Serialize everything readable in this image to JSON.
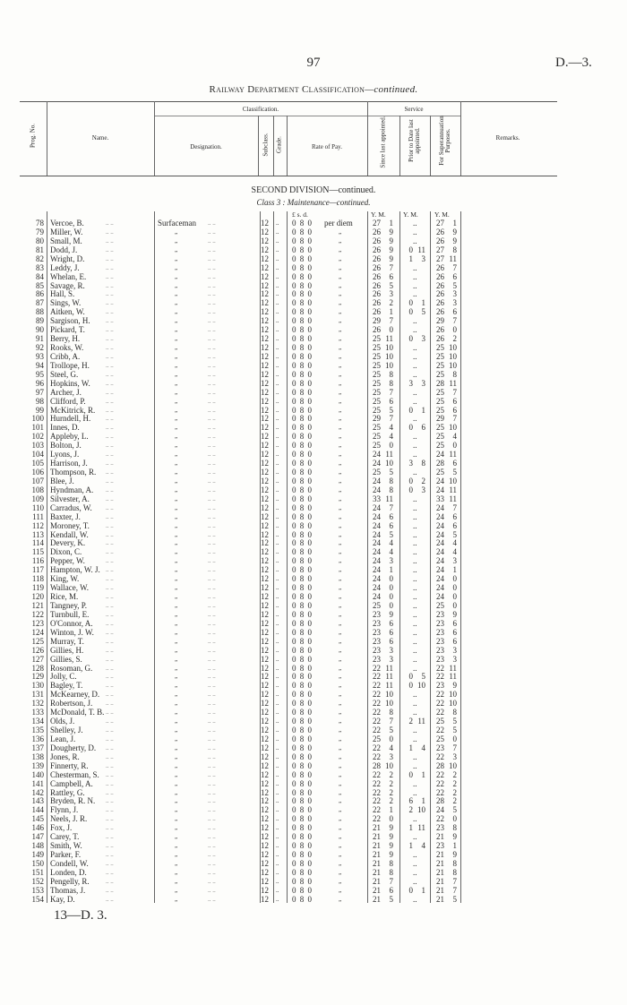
{
  "page": {
    "number": "97",
    "reference": "D.—3.",
    "footer": "13—D. 3."
  },
  "title": {
    "main": "Railway Department Classification",
    "suffix": "—continued."
  },
  "headers": {
    "prog_no": "Prog. No.",
    "name": "Name.",
    "classification": "Classification.",
    "designation": "Designation.",
    "subclass": "Subclass.",
    "grade": "Grade.",
    "rate_of_pay": "Rate of Pay.",
    "service": "Service",
    "since_last": "Since last appointed.",
    "prior_to_date": "Prior to Date last appointed.",
    "for_super": "For Superannuation Purposes.",
    "remarks": "Remarks."
  },
  "section": {
    "division": "SECOND DIVISION—continued.",
    "class_label": "Class 3 : Maintenance—continued."
  },
  "units": {
    "pay": "£  s.  d.",
    "ym": "Y.  M."
  },
  "common": {
    "designation": "Surfaceman",
    "ditto": "„",
    "subclass": "12",
    "grade": "..",
    "rate": "0  8  0",
    "rate_unit": "per diem",
    "blank": ".."
  },
  "rows": [
    [
      "78",
      "Vercoe, B.",
      "27 1",
      "..",
      "27 1"
    ],
    [
      "79",
      "Miller, W.",
      "26 9",
      "..",
      "26 9"
    ],
    [
      "80",
      "Small, M.",
      "26 9",
      "..",
      "26 9"
    ],
    [
      "81",
      "Dodd, J.",
      "26 9",
      "0 11",
      "27 8"
    ],
    [
      "82",
      "Wright, D.",
      "26 9",
      "1 3",
      "27 11"
    ],
    [
      "83",
      "Leddy, J.",
      "26 7",
      "..",
      "26 7"
    ],
    [
      "84",
      "Whelan, E.",
      "26 6",
      "..",
      "26 6"
    ],
    [
      "85",
      "Savage, R.",
      "26 5",
      "..",
      "26 5"
    ],
    [
      "86",
      "Hall, S.",
      "26 3",
      "..",
      "26 3"
    ],
    [
      "87",
      "Sings, W.",
      "26 2",
      "0 1",
      "26 3"
    ],
    [
      "88",
      "Aitken, W.",
      "26 1",
      "0 5",
      "26 6"
    ],
    [
      "89",
      "Sargison, H.",
      "29 7",
      "..",
      "29 7"
    ],
    [
      "90",
      "Pickard, T.",
      "26 0",
      "..",
      "26 0"
    ],
    [
      "91",
      "Berry, H.",
      "25 11",
      "0 3",
      "26 2"
    ],
    [
      "92",
      "Rooks, W.",
      "25 10",
      "..",
      "25 10"
    ],
    [
      "93",
      "Cribb, A.",
      "25 10",
      "..",
      "25 10"
    ],
    [
      "94",
      "Trollope, H.",
      "25 10",
      "..",
      "25 10"
    ],
    [
      "95",
      "Steel, G.",
      "25 8",
      "..",
      "25 8"
    ],
    [
      "96",
      "Hopkins, W.",
      "25 8",
      "3 3",
      "28 11"
    ],
    [
      "97",
      "Archer, J.",
      "25 7",
      "..",
      "25 7"
    ],
    [
      "98",
      "Clifford, P.",
      "25 6",
      "..",
      "25 6"
    ],
    [
      "99",
      "McKitrick, R.",
      "25 5",
      "0 1",
      "25 6"
    ],
    [
      "100",
      "Hurndell, H.",
      "29 7",
      "..",
      "29 7"
    ],
    [
      "101",
      "Innes, D.",
      "25 4",
      "0 6",
      "25 10"
    ],
    [
      "102",
      "Appleby, L.",
      "25 4",
      "..",
      "25 4"
    ],
    [
      "103",
      "Bolton, J.",
      "25 0",
      "..",
      "25 0"
    ],
    [
      "104",
      "Lyons, J.",
      "24 11",
      "..",
      "24 11"
    ],
    [
      "105",
      "Harrison, J.",
      "24 10",
      "3 8",
      "28 6"
    ],
    [
      "106",
      "Thompson, R.",
      "25 5",
      "..",
      "25 5"
    ],
    [
      "107",
      "Blee, J.",
      "24 8",
      "0 2",
      "24 10"
    ],
    [
      "108",
      "Hyndman, A.",
      "24 8",
      "0 3",
      "24 11"
    ],
    [
      "109",
      "Silvester, A.",
      "33 11",
      "..",
      "33 11"
    ],
    [
      "110",
      "Carradus, W.",
      "24 7",
      "..",
      "24 7"
    ],
    [
      "111",
      "Baxter, J.",
      "24 6",
      "..",
      "24 6"
    ],
    [
      "112",
      "Moroney, T.",
      "24 6",
      "..",
      "24 6"
    ],
    [
      "113",
      "Kendall, W.",
      "24 5",
      "..",
      "24 5"
    ],
    [
      "114",
      "Devery, K.",
      "24 4",
      "..",
      "24 4"
    ],
    [
      "115",
      "Dixon, C.",
      "24 4",
      "..",
      "24 4"
    ],
    [
      "116",
      "Pepper, W.",
      "24 3",
      "..",
      "24 3"
    ],
    [
      "117",
      "Hampton, W. J.",
      "24 1",
      "..",
      "24 1"
    ],
    [
      "118",
      "King, W.",
      "24 0",
      "..",
      "24 0"
    ],
    [
      "119",
      "Wallace, W.",
      "24 0",
      "..",
      "24 0"
    ],
    [
      "120",
      "Rice, M.",
      "24 0",
      "..",
      "24 0"
    ],
    [
      "121",
      "Tangney, P.",
      "25 0",
      "..",
      "25 0"
    ],
    [
      "122",
      "Turnbull, E.",
      "23 9",
      "..",
      "23 9"
    ],
    [
      "123",
      "O'Connor, A.",
      "23 6",
      "..",
      "23 6"
    ],
    [
      "124",
      "Winton, J. W.",
      "23 6",
      "..",
      "23 6"
    ],
    [
      "125",
      "Murray, T.",
      "23 6",
      "..",
      "23 6"
    ],
    [
      "126",
      "Gillies, H.",
      "23 3",
      "..",
      "23 3"
    ],
    [
      "127",
      "Gillies, S.",
      "23 3",
      "..",
      "23 3"
    ],
    [
      "128",
      "Rosoman, G.",
      "22 11",
      "..",
      "22 11"
    ],
    [
      "129",
      "Jolly, C.",
      "22 11",
      "0 5",
      "22 11"
    ],
    [
      "130",
      "Bagley, T.",
      "22 11",
      "0 10",
      "23 9"
    ],
    [
      "131",
      "McKearney, D.",
      "22 10",
      "..",
      "22 10"
    ],
    [
      "132",
      "Robertson, J.",
      "22 10",
      "..",
      "22 10"
    ],
    [
      "133",
      "McDonald, T. B.",
      "22 8",
      "..",
      "22 8"
    ],
    [
      "134",
      "Olds, J.",
      "22 7",
      "2 11",
      "25 5"
    ],
    [
      "135",
      "Shelley, J.",
      "22 5",
      "..",
      "22 5"
    ],
    [
      "136",
      "Lean, J.",
      "25 0",
      "..",
      "25 0"
    ],
    [
      "137",
      "Dougherty, D.",
      "22 4",
      "1 4",
      "23 7"
    ],
    [
      "138",
      "Jones, R.",
      "22 3",
      "..",
      "22 3"
    ],
    [
      "139",
      "Finnerty, R.",
      "28 10",
      "..",
      "28 10"
    ],
    [
      "140",
      "Chesterman, S.",
      "22 2",
      "0 1",
      "22 2"
    ],
    [
      "141",
      "Campbell, A.",
      "22 2",
      "..",
      "22 2"
    ],
    [
      "142",
      "Rattley, G.",
      "22 2",
      "..",
      "22 2"
    ],
    [
      "143",
      "Bryden, R. N.",
      "22 2",
      "6 1",
      "28 2"
    ],
    [
      "144",
      "Flynn, J.",
      "22 1",
      "2 10",
      "24 5"
    ],
    [
      "145",
      "Neels, J. R.",
      "22 0",
      "..",
      "22 0"
    ],
    [
      "146",
      "Fox, J.",
      "21 9",
      "1 11",
      "23 8"
    ],
    [
      "147",
      "Carey, T.",
      "21 9",
      "..",
      "21 9"
    ],
    [
      "148",
      "Smith, W.",
      "21 9",
      "1 4",
      "23 1"
    ],
    [
      "149",
      "Parker, F.",
      "21 9",
      "..",
      "21 9"
    ],
    [
      "150",
      "Condell, W.",
      "21 8",
      "..",
      "21 8"
    ],
    [
      "151",
      "Londen, D.",
      "21 8",
      "..",
      "21 8"
    ],
    [
      "152",
      "Pengelly, R.",
      "21 7",
      "..",
      "21 7"
    ],
    [
      "153",
      "Thomas, J.",
      "21 6",
      "0 1",
      "21 7"
    ],
    [
      "154",
      "Kay, D.",
      "21 5",
      "..",
      "21 5"
    ]
  ]
}
